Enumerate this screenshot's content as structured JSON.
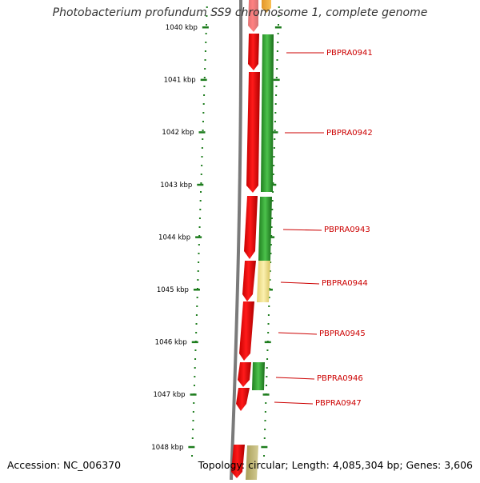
{
  "title": "Photobacterium profundum SS9 chromosome 1, complete genome",
  "footer": {
    "accession": "Accession: NC_006370",
    "summary": "Topology: circular; Length: 4,085,304 bp; Genes: 3,606"
  },
  "colors": {
    "ruler": "#1e7d1e",
    "backbone": "#7a7a7a",
    "gene_red": "#ee1111",
    "gene_green": "#2e9e2e",
    "gene_yellow": "#f0e08c",
    "gene_orange": "#f0a020",
    "gene_olive": "#b8b070",
    "label": "#cc0000"
  },
  "ruler": {
    "unit": "kbp",
    "ticks": [
      "1040 kbp",
      "1041 kbp",
      "1042 kbp",
      "1043 kbp",
      "1044 kbp",
      "1045 kbp",
      "1046 kbp",
      "1047 kbp",
      "1048 kbp"
    ]
  },
  "genes": [
    {
      "id": "PBPRA0941",
      "label": "PBPRA0941"
    },
    {
      "id": "PBPRA0942",
      "label": "PBPRA0942"
    },
    {
      "id": "PBPRA0943",
      "label": "PBPRA0943"
    },
    {
      "id": "PBPRA0944",
      "label": "PBPRA0944"
    },
    {
      "id": "PBPRA0945",
      "label": "PBPRA0945"
    },
    {
      "id": "PBPRA0946",
      "label": "PBPRA0946"
    },
    {
      "id": "PBPRA0947",
      "label": "PBPRA0947"
    }
  ]
}
